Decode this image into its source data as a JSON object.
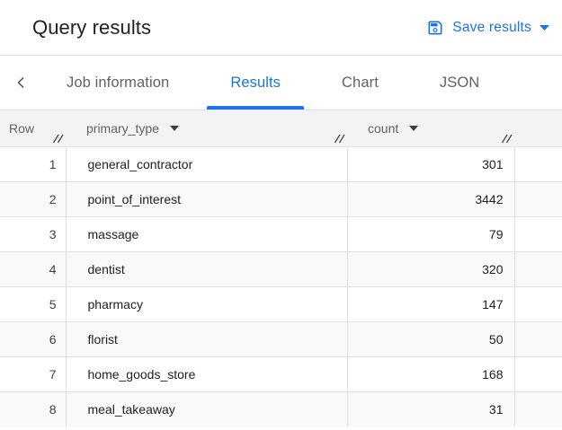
{
  "header": {
    "title": "Query results",
    "save_button_label": "Save results"
  },
  "tabs": {
    "items": [
      {
        "label": "Job information",
        "active": false
      },
      {
        "label": "Results",
        "active": true
      },
      {
        "label": "Chart",
        "active": false
      },
      {
        "label": "JSON",
        "active": false
      }
    ]
  },
  "table": {
    "columns": [
      {
        "label": "Row",
        "sortable": false
      },
      {
        "label": "primary_type",
        "sortable": true
      },
      {
        "label": "count",
        "sortable": true
      }
    ],
    "rows": [
      {
        "row": 1,
        "primary_type": "general_contractor",
        "count": 301
      },
      {
        "row": 2,
        "primary_type": "point_of_interest",
        "count": 3442
      },
      {
        "row": 3,
        "primary_type": "massage",
        "count": 79
      },
      {
        "row": 4,
        "primary_type": "dentist",
        "count": 320
      },
      {
        "row": 5,
        "primary_type": "pharmacy",
        "count": 147
      },
      {
        "row": 6,
        "primary_type": "florist",
        "count": 50
      },
      {
        "row": 7,
        "primary_type": "home_goods_store",
        "count": 168
      },
      {
        "row": 8,
        "primary_type": "meal_takeaway",
        "count": 31
      }
    ]
  },
  "icons": {
    "save": "save-icon",
    "dropdown": "chevron-down-icon",
    "back": "chevron-left-icon",
    "column_sort": "column-dropdown-caret-icon",
    "column_resize": "column-resize-handle-icon"
  },
  "colors": {
    "accent": "#1a73e8",
    "title_text": "#202124",
    "tab_inactive": "#5f6368",
    "table_header_bg": "#f1f3f4",
    "row_stripe": "#f8f9fa",
    "border": "#e0e0e0",
    "cell_text": "#202124"
  }
}
